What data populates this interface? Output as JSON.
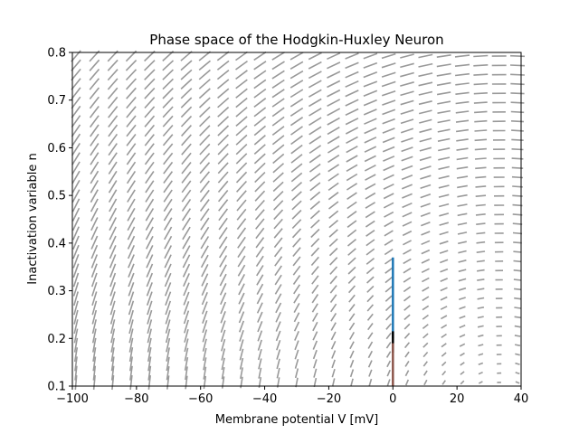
{
  "chart_data": {
    "type": "line",
    "title": "Phase space of the Hodgkin-Huxley Neuron",
    "xlabel": "Membrane potential V [mV]",
    "ylabel": "Inactivation variable n",
    "xlim": [
      -100,
      40
    ],
    "ylim": [
      0.1,
      0.8
    ],
    "xticks": [
      -100,
      -80,
      -60,
      -40,
      -20,
      0,
      20,
      40
    ],
    "xtick_labels": [
      "−100",
      "−80",
      "−60",
      "−40",
      "−20",
      "0",
      "20",
      "40"
    ],
    "yticks": [
      0.1,
      0.2,
      0.3,
      0.4,
      0.5,
      0.6,
      0.7,
      0.8
    ],
    "ytick_labels": [
      "0.1",
      "0.2",
      "0.3",
      "0.4",
      "0.5",
      "0.6",
      "0.7",
      "0.8"
    ],
    "grid": false,
    "vector_field": {
      "kind": "quiver",
      "color": "#999999",
      "description": "gray direction field of the (V, n) system",
      "center": [
        0,
        0.1
      ]
    },
    "series": [
      {
        "color": "#1f77b4",
        "x": [
          0,
          0
        ],
        "y": [
          0.2,
          0.37
        ]
      },
      {
        "color": "#000000",
        "x": [
          0,
          0
        ],
        "y": [
          0.17,
          0.215
        ]
      },
      {
        "color": "#8c564b",
        "x": [
          0,
          0
        ],
        "y": [
          0.1,
          0.19
        ]
      }
    ]
  }
}
